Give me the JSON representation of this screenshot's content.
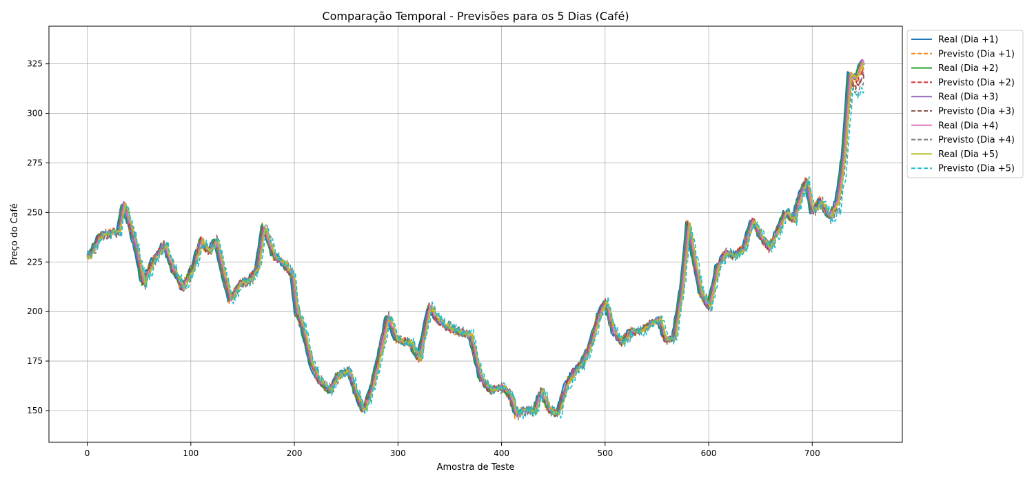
{
  "chart_data": {
    "type": "line",
    "title": "Comparação Temporal - Previsões para os 5 Dias (Café)",
    "xlabel": "Amostra de Teste",
    "ylabel": "Preço do Café",
    "xlim": [
      -37,
      787
    ],
    "ylim": [
      134,
      344
    ],
    "xticks": [
      0,
      100,
      200,
      300,
      400,
      500,
      600,
      700
    ],
    "yticks": [
      150,
      175,
      200,
      225,
      250,
      275,
      300,
      325
    ],
    "grid": true,
    "legend_position": "outside-top-right",
    "anchors": [
      [
        0,
        228
      ],
      [
        10,
        238
      ],
      [
        20,
        240
      ],
      [
        28,
        240
      ],
      [
        33,
        255
      ],
      [
        45,
        232
      ],
      [
        52,
        214
      ],
      [
        62,
        226
      ],
      [
        72,
        234
      ],
      [
        80,
        222
      ],
      [
        90,
        212
      ],
      [
        100,
        222
      ],
      [
        108,
        236
      ],
      [
        115,
        230
      ],
      [
        122,
        236
      ],
      [
        130,
        218
      ],
      [
        136,
        206
      ],
      [
        145,
        214
      ],
      [
        155,
        216
      ],
      [
        162,
        222
      ],
      [
        168,
        243
      ],
      [
        178,
        228
      ],
      [
        188,
        224
      ],
      [
        196,
        218
      ],
      [
        200,
        200
      ],
      [
        206,
        192
      ],
      [
        214,
        174
      ],
      [
        222,
        165
      ],
      [
        232,
        160
      ],
      [
        240,
        168
      ],
      [
        250,
        170
      ],
      [
        258,
        158
      ],
      [
        264,
        150
      ],
      [
        272,
        160
      ],
      [
        280,
        178
      ],
      [
        288,
        198
      ],
      [
        296,
        186
      ],
      [
        310,
        184
      ],
      [
        318,
        176
      ],
      [
        328,
        202
      ],
      [
        336,
        196
      ],
      [
        346,
        192
      ],
      [
        356,
        190
      ],
      [
        368,
        188
      ],
      [
        378,
        166
      ],
      [
        388,
        160
      ],
      [
        398,
        162
      ],
      [
        406,
        158
      ],
      [
        412,
        148
      ],
      [
        420,
        150
      ],
      [
        430,
        150
      ],
      [
        436,
        160
      ],
      [
        444,
        150
      ],
      [
        452,
        148
      ],
      [
        460,
        162
      ],
      [
        468,
        170
      ],
      [
        476,
        174
      ],
      [
        484,
        184
      ],
      [
        492,
        198
      ],
      [
        498,
        205
      ],
      [
        506,
        190
      ],
      [
        514,
        184
      ],
      [
        522,
        190
      ],
      [
        532,
        190
      ],
      [
        542,
        194
      ],
      [
        550,
        196
      ],
      [
        556,
        186
      ],
      [
        564,
        186
      ],
      [
        572,
        212
      ],
      [
        578,
        244
      ],
      [
        584,
        226
      ],
      [
        590,
        210
      ],
      [
        598,
        202
      ],
      [
        606,
        222
      ],
      [
        614,
        230
      ],
      [
        622,
        228
      ],
      [
        632,
        232
      ],
      [
        640,
        246
      ],
      [
        648,
        238
      ],
      [
        656,
        232
      ],
      [
        664,
        240
      ],
      [
        672,
        250
      ],
      [
        680,
        246
      ],
      [
        686,
        258
      ],
      [
        692,
        266
      ],
      [
        698,
        250
      ],
      [
        706,
        256
      ],
      [
        714,
        248
      ],
      [
        722,
        255
      ],
      [
        728,
        278
      ],
      [
        734,
        320
      ],
      [
        740,
        318
      ],
      [
        746,
        326
      ],
      [
        750,
        324
      ]
    ],
    "series": [
      {
        "name": "Real (Dia +1)",
        "color": "#1f77b4",
        "dash": "solid",
        "lag": 0,
        "amp": 1.2,
        "seed": 3
      },
      {
        "name": "Previsto (Dia +1)",
        "color": "#ff7f0e",
        "dash": "dashed",
        "lag": 1,
        "amp": 2.2,
        "seed": 7
      },
      {
        "name": "Real (Dia +2)",
        "color": "#2ca02c",
        "dash": "solid",
        "lag": 1,
        "amp": 1.2,
        "seed": 11
      },
      {
        "name": "Previsto (Dia +2)",
        "color": "#d62728",
        "dash": "dashed",
        "lag": 2,
        "amp": 2.4,
        "seed": 13
      },
      {
        "name": "Real (Dia +3)",
        "color": "#9467bd",
        "dash": "solid",
        "lag": 2,
        "amp": 1.2,
        "seed": 17
      },
      {
        "name": "Previsto (Dia +3)",
        "color": "#8c564b",
        "dash": "dashed",
        "lag": 3,
        "amp": 2.6,
        "seed": 19
      },
      {
        "name": "Real (Dia +4)",
        "color": "#e377c2",
        "dash": "solid",
        "lag": 3,
        "amp": 1.2,
        "seed": 23
      },
      {
        "name": "Previsto (Dia +4)",
        "color": "#7f7f7f",
        "dash": "dashed",
        "lag": 4,
        "amp": 2.8,
        "seed": 29
      },
      {
        "name": "Real (Dia +5)",
        "color": "#bcbd22",
        "dash": "solid",
        "lag": 4,
        "amp": 1.2,
        "seed": 31
      },
      {
        "name": "Previsto (Dia +5)",
        "color": "#17becf",
        "dash": "dashed",
        "lag": 5,
        "amp": 3.0,
        "seed": 37
      }
    ]
  }
}
